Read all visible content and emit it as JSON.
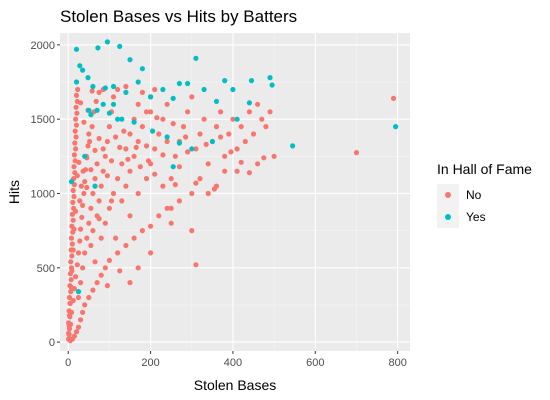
{
  "chart_data": {
    "type": "scatter",
    "title": "Stolen Bases vs Hits by Batters",
    "xlabel": "Stolen Bases",
    "ylabel": "Hits",
    "xlim": [
      -20,
      830
    ],
    "ylim": [
      -60,
      2080
    ],
    "x_ticks": [
      0,
      200,
      400,
      600,
      800
    ],
    "y_ticks": [
      0,
      500,
      1000,
      1500,
      2000
    ],
    "grid": true,
    "legend": {
      "title": "In Hall of Fame",
      "position": "right",
      "entries": [
        "No",
        "Yes"
      ]
    },
    "colors": {
      "No": "#F8766D",
      "Yes": "#00BFC4"
    },
    "series": [
      {
        "name": "No",
        "points": [
          [
            1,
            20
          ],
          [
            2,
            50
          ],
          [
            3,
            90
          ],
          [
            1,
            130
          ],
          [
            4,
            170
          ],
          [
            2,
            210
          ],
          [
            5,
            260
          ],
          [
            3,
            300
          ],
          [
            6,
            340
          ],
          [
            4,
            380
          ],
          [
            7,
            420
          ],
          [
            5,
            460
          ],
          [
            8,
            500
          ],
          [
            6,
            540
          ],
          [
            9,
            580
          ],
          [
            7,
            620
          ],
          [
            10,
            660
          ],
          [
            8,
            700
          ],
          [
            11,
            740
          ],
          [
            9,
            780
          ],
          [
            12,
            820
          ],
          [
            10,
            860
          ],
          [
            13,
            900
          ],
          [
            11,
            940
          ],
          [
            14,
            980
          ],
          [
            12,
            1020
          ],
          [
            15,
            1060
          ],
          [
            13,
            1100
          ],
          [
            16,
            1140
          ],
          [
            14,
            1180
          ],
          [
            17,
            1220
          ],
          [
            15,
            1260
          ],
          [
            18,
            1300
          ],
          [
            16,
            1340
          ],
          [
            19,
            1380
          ],
          [
            17,
            1420
          ],
          [
            20,
            1460
          ],
          [
            18,
            1500
          ],
          [
            21,
            1540
          ],
          [
            19,
            1580
          ],
          [
            22,
            1620
          ],
          [
            20,
            1660
          ],
          [
            23,
            1700
          ],
          [
            6,
            120
          ],
          [
            8,
            200
          ],
          [
            12,
            280
          ],
          [
            15,
            360
          ],
          [
            18,
            440
          ],
          [
            22,
            520
          ],
          [
            25,
            600
          ],
          [
            28,
            680
          ],
          [
            30,
            760
          ],
          [
            33,
            840
          ],
          [
            35,
            920
          ],
          [
            38,
            1000
          ],
          [
            40,
            1080
          ],
          [
            42,
            1160
          ],
          [
            45,
            1240
          ],
          [
            48,
            1320
          ],
          [
            50,
            1400
          ],
          [
            25,
            300
          ],
          [
            30,
            400
          ],
          [
            35,
            500
          ],
          [
            40,
            600
          ],
          [
            45,
            700
          ],
          [
            50,
            800
          ],
          [
            55,
            900
          ],
          [
            60,
            1000
          ],
          [
            65,
            1100
          ],
          [
            70,
            1200
          ],
          [
            28,
            950
          ],
          [
            32,
            1050
          ],
          [
            36,
            1150
          ],
          [
            44,
            1250
          ],
          [
            52,
            1350
          ],
          [
            58,
            1450
          ],
          [
            62,
            1550
          ],
          [
            68,
            1620
          ],
          [
            75,
            1680
          ],
          [
            85,
            1700
          ],
          [
            55,
            650
          ],
          [
            60,
            750
          ],
          [
            70,
            850
          ],
          [
            75,
            950
          ],
          [
            80,
            1050
          ],
          [
            85,
            1150
          ],
          [
            90,
            1250
          ],
          [
            95,
            1350
          ],
          [
            100,
            1450
          ],
          [
            105,
            1550
          ],
          [
            110,
            1650
          ],
          [
            120,
            1700
          ],
          [
            80,
            700
          ],
          [
            90,
            800
          ],
          [
            100,
            900
          ],
          [
            110,
            1000
          ],
          [
            120,
            1100
          ],
          [
            130,
            1200
          ],
          [
            140,
            1300
          ],
          [
            150,
            1400
          ],
          [
            160,
            1500
          ],
          [
            170,
            1600
          ],
          [
            180,
            1680
          ],
          [
            130,
            950
          ],
          [
            140,
            1050
          ],
          [
            150,
            1150
          ],
          [
            160,
            1250
          ],
          [
            170,
            1350
          ],
          [
            180,
            1450
          ],
          [
            190,
            1550
          ],
          [
            200,
            1650
          ],
          [
            210,
            1700
          ],
          [
            150,
            850
          ],
          [
            170,
            1000
          ],
          [
            190,
            1100
          ],
          [
            200,
            1200
          ],
          [
            210,
            1300
          ],
          [
            220,
            1400
          ],
          [
            230,
            1500
          ],
          [
            240,
            1600
          ],
          [
            250,
            1100
          ],
          [
            260,
            1250
          ],
          [
            270,
            1350
          ],
          [
            280,
            1450
          ],
          [
            290,
            1550
          ],
          [
            300,
            1650
          ],
          [
            310,
            1300
          ],
          [
            320,
            1400
          ],
          [
            330,
            1500
          ],
          [
            340,
            1200
          ],
          [
            350,
            1350
          ],
          [
            360,
            1450
          ],
          [
            370,
            1550
          ],
          [
            380,
            1250
          ],
          [
            390,
            1400
          ],
          [
            400,
            1500
          ],
          [
            410,
            1300
          ],
          [
            420,
            1450
          ],
          [
            430,
            1350
          ],
          [
            440,
            1550
          ],
          [
            450,
            1400
          ],
          [
            460,
            1600
          ],
          [
            470,
            1500
          ],
          [
            480,
            1450
          ],
          [
            490,
            1550
          ],
          [
            500,
            1250
          ],
          [
            300,
            1000
          ],
          [
            320,
            1100
          ],
          [
            340,
            1000
          ],
          [
            360,
            1050
          ],
          [
            380,
            1150
          ],
          [
            250,
            900
          ],
          [
            270,
            950
          ],
          [
            220,
            850
          ],
          [
            240,
            900
          ],
          [
            200,
            780
          ],
          [
            180,
            750
          ],
          [
            160,
            700
          ],
          [
            140,
            650
          ],
          [
            120,
            600
          ],
          [
            100,
            550
          ],
          [
            90,
            500
          ],
          [
            80,
            450
          ],
          [
            70,
            400
          ],
          [
            60,
            350
          ],
          [
            50,
            300
          ],
          [
            40,
            250
          ],
          [
            35,
            200
          ],
          [
            30,
            150
          ],
          [
            25,
            100
          ],
          [
            20,
            70
          ],
          [
            15,
            40
          ],
          [
            10,
            20
          ],
          [
            5,
            10
          ],
          [
            150,
            400
          ],
          [
            200,
            600
          ],
          [
            250,
            800
          ],
          [
            300,
            750
          ],
          [
            310,
            520
          ],
          [
            355,
            1030
          ],
          [
            410,
            1150
          ],
          [
            460,
            1200
          ],
          [
            700,
            1275
          ],
          [
            790,
            1640
          ],
          [
            310,
            1070
          ],
          [
            290,
            1280
          ],
          [
            270,
            1180
          ],
          [
            230,
            1260
          ],
          [
            190,
            1320
          ],
          [
            215,
            1510
          ],
          [
            255,
            1470
          ],
          [
            285,
            1380
          ],
          [
            335,
            1330
          ],
          [
            370,
            1380
          ],
          [
            395,
            1280
          ],
          [
            420,
            1210
          ],
          [
            440,
            1140
          ],
          [
            475,
            1240
          ],
          [
            260,
            1060
          ],
          [
            240,
            1350
          ],
          [
            210,
            1130
          ],
          [
            195,
            1220
          ],
          [
            175,
            1180
          ],
          [
            165,
            1310
          ],
          [
            145,
            1230
          ],
          [
            125,
            1310
          ],
          [
            135,
            1420
          ],
          [
            115,
            1380
          ],
          [
            105,
            1220
          ],
          [
            95,
            1120
          ],
          [
            85,
            1300
          ],
          [
            75,
            1370
          ],
          [
            65,
            1290
          ],
          [
            55,
            1160
          ],
          [
            45,
            1040
          ],
          [
            38,
            1480
          ],
          [
            48,
            1560
          ],
          [
            58,
            1690
          ],
          [
            30,
            1610
          ],
          [
            26,
            1210
          ],
          [
            22,
            1120
          ],
          [
            18,
            880
          ],
          [
            14,
            760
          ],
          [
            12,
            620
          ],
          [
            9,
            480
          ],
          [
            7,
            370
          ],
          [
            4,
            260
          ],
          [
            3,
            180
          ],
          [
            2,
            110
          ],
          [
            1,
            60
          ],
          [
            140,
            1720
          ],
          [
            200,
            1550
          ],
          [
            230,
            1050
          ],
          [
            170,
            500
          ],
          [
            105,
            950
          ],
          [
            115,
            700
          ],
          [
            125,
            480
          ],
          [
            95,
            380
          ],
          [
            65,
            540
          ],
          [
            75,
            830
          ]
        ]
      },
      {
        "name": "Yes",
        "points": [
          [
            20,
            1970
          ],
          [
            72,
            1980
          ],
          [
            95,
            2020
          ],
          [
            125,
            1990
          ],
          [
            150,
            1900
          ],
          [
            180,
            1840
          ],
          [
            28,
            1860
          ],
          [
            35,
            1830
          ],
          [
            48,
            1780
          ],
          [
            20,
            1750
          ],
          [
            60,
            1720
          ],
          [
            90,
            1710
          ],
          [
            110,
            1720
          ],
          [
            140,
            1680
          ],
          [
            170,
            1750
          ],
          [
            200,
            1650
          ],
          [
            230,
            1700
          ],
          [
            255,
            1640
          ],
          [
            270,
            1740
          ],
          [
            290,
            1740
          ],
          [
            310,
            1910
          ],
          [
            330,
            1700
          ],
          [
            360,
            1620
          ],
          [
            380,
            1760
          ],
          [
            400,
            1700
          ],
          [
            445,
            1760
          ],
          [
            495,
            1730
          ],
          [
            490,
            1780
          ],
          [
            440,
            1610
          ],
          [
            410,
            1500
          ],
          [
            350,
            1350
          ],
          [
            300,
            1300
          ],
          [
            270,
            1340
          ],
          [
            240,
            1380
          ],
          [
            205,
            1420
          ],
          [
            160,
            1480
          ],
          [
            130,
            1500
          ],
          [
            100,
            1540
          ],
          [
            70,
            1560
          ],
          [
            50,
            1560
          ],
          [
            55,
            1530
          ],
          [
            85,
            1600
          ],
          [
            110,
            1600
          ],
          [
            40,
            1250
          ],
          [
            65,
            1050
          ],
          [
            120,
            1500
          ],
          [
            545,
            1320
          ],
          [
            795,
            1450
          ],
          [
            255,
            1180
          ],
          [
            25,
            340
          ],
          [
            8,
            1080
          ]
        ]
      }
    ]
  }
}
